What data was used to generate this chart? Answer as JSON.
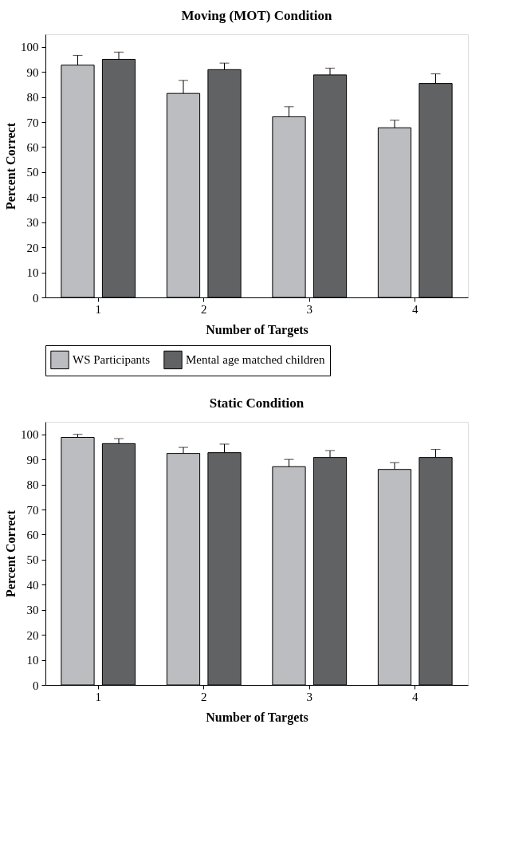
{
  "chart_data": [
    {
      "type": "bar",
      "title": "Moving (MOT) Condition",
      "xlabel": "Number of Targets",
      "ylabel": "Percent Correct",
      "categories": [
        "1",
        "2",
        "3",
        "4"
      ],
      "ylim": [
        0,
        105
      ],
      "yticks": [
        0,
        10,
        20,
        30,
        40,
        50,
        60,
        70,
        80,
        90,
        100
      ],
      "grid": false,
      "legend": "bottom",
      "series": [
        {
          "name": "WS Participants",
          "color": "#bcbdc1",
          "values": [
            92.7,
            81.4,
            72.1,
            67.7
          ],
          "errors": [
            [
              92.7,
              96.6
            ],
            [
              81.4,
              86.6
            ],
            [
              72.1,
              76.1
            ],
            [
              67.7,
              70.7
            ]
          ]
        },
        {
          "name": "Mental age matched children",
          "color": "#616264",
          "values": [
            95.0,
            90.9,
            88.8,
            85.4
          ],
          "errors": [
            [
              95.0,
              97.9
            ],
            [
              90.9,
              93.5
            ],
            [
              88.8,
              91.5
            ],
            [
              85.4,
              89.2
            ]
          ]
        }
      ]
    },
    {
      "type": "bar",
      "title": "Static Condition",
      "xlabel": "Number of Targets",
      "ylabel": "Percent Correct",
      "categories": [
        "1",
        "2",
        "3",
        "4"
      ],
      "ylim": [
        0,
        105
      ],
      "yticks": [
        0,
        10,
        20,
        30,
        40,
        50,
        60,
        70,
        80,
        90,
        100
      ],
      "grid": false,
      "series": [
        {
          "color": "#bcbdc1",
          "values": [
            98.8,
            92.4,
            87.1,
            86.0
          ],
          "errors": [
            [
              98.8,
              100.0
            ],
            [
              92.4,
              94.8
            ],
            [
              87.1,
              90.0
            ],
            [
              86.0,
              88.7
            ]
          ]
        },
        {
          "color": "#616264",
          "values": [
            96.3,
            92.7,
            90.8,
            90.8
          ],
          "errors": [
            [
              96.3,
              98.3
            ],
            [
              92.7,
              96.1
            ],
            [
              90.8,
              93.5
            ],
            [
              90.8,
              94.0
            ]
          ]
        }
      ]
    }
  ]
}
